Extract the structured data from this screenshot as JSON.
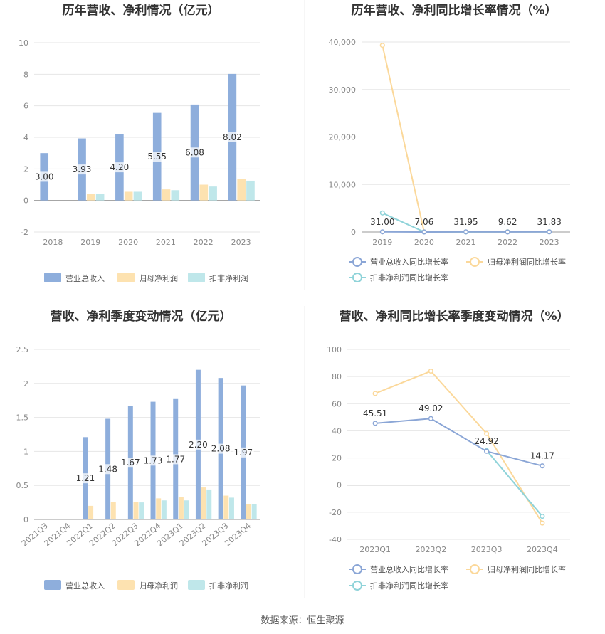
{
  "source": "数据来源：恒生聚源",
  "colors": {
    "revenue": "#8eaedc",
    "netprofit": "#fde2b0",
    "deducted": "#bfe7ea",
    "revLine": "#8ba6d6",
    "npLine": "#fbd89a",
    "dedLine": "#8fd3d9"
  },
  "chart_data": [
    {
      "id": "annual",
      "type": "bar",
      "title": "历年营收、净利情况（亿元）",
      "categories": [
        "2018",
        "2019",
        "2020",
        "2021",
        "2022",
        "2023"
      ],
      "ylim": [
        -2,
        10
      ],
      "yticks": [
        -2,
        0,
        2,
        4,
        6,
        8,
        10
      ],
      "grid": true,
      "legend": "bottom",
      "series": [
        {
          "name": "营业总收入",
          "values": [
            3.0,
            3.93,
            4.2,
            5.55,
            6.08,
            8.02
          ],
          "labels": [
            "3.00",
            "3.93",
            "4.20",
            "5.55",
            "6.08",
            "8.02"
          ]
        },
        {
          "name": "归母净利润",
          "values": [
            null,
            0.4,
            0.55,
            0.7,
            1.0,
            1.38
          ]
        },
        {
          "name": "扣非净利润",
          "values": [
            null,
            0.4,
            0.55,
            0.65,
            0.88,
            1.25
          ]
        }
      ]
    },
    {
      "id": "annualGrowth",
      "type": "line",
      "title": "历年营收、净利同比增长率情况（%）",
      "categories": [
        "2019",
        "2020",
        "2021",
        "2022",
        "2023"
      ],
      "ylim": [
        0,
        40000
      ],
      "yticks": [
        0,
        10000,
        20000,
        30000,
        40000
      ],
      "ytick_labels": [
        "0",
        "10,000",
        "20,000",
        "30,000",
        "40,000"
      ],
      "grid": true,
      "legend": "bottom",
      "series": [
        {
          "name": "营业总收入同比增长率",
          "values": [
            31.0,
            7.06,
            31.95,
            9.62,
            31.83
          ],
          "labels": [
            "31.00",
            "7.06",
            "31.95",
            "9.62",
            "31.83"
          ]
        },
        {
          "name": "归母净利润同比增长率",
          "values": [
            39300,
            30,
            20,
            40,
            30
          ]
        },
        {
          "name": "扣非净利润同比增长率",
          "values": [
            4000,
            20,
            10,
            30,
            40
          ]
        }
      ]
    },
    {
      "id": "quarterly",
      "type": "bar",
      "title": "营收、净利季度变动情况（亿元）",
      "categories": [
        "2021Q3",
        "2021Q4",
        "2022Q1",
        "2022Q2",
        "2022Q3",
        "2022Q4",
        "2023Q1",
        "2023Q2",
        "2023Q3",
        "2023Q4"
      ],
      "ylim": [
        0,
        2.5
      ],
      "yticks": [
        0,
        0.5,
        1,
        1.5,
        2,
        2.5
      ],
      "ytick_labels": [
        "0",
        "0.5",
        "1",
        "1.5",
        "2",
        "2.5"
      ],
      "grid": true,
      "legend": "bottom",
      "series": [
        {
          "name": "营业总收入",
          "values": [
            null,
            null,
            1.21,
            1.48,
            1.67,
            1.73,
            1.77,
            2.2,
            2.08,
            1.97
          ],
          "labels": [
            "",
            "",
            "1.21",
            "1.48",
            "1.67",
            "1.73",
            "1.77",
            "2.20",
            "2.08",
            "1.97"
          ]
        },
        {
          "name": "归母净利润",
          "values": [
            null,
            null,
            0.2,
            0.26,
            0.26,
            0.31,
            0.33,
            0.47,
            0.35,
            0.23
          ]
        },
        {
          "name": "扣非净利润",
          "values": [
            null,
            null,
            null,
            null,
            0.25,
            0.28,
            0.28,
            0.44,
            0.32,
            0.22
          ]
        }
      ]
    },
    {
      "id": "quarterlyGrowth",
      "type": "line",
      "title": "营收、净利同比增长率季度变动情况（%）",
      "categories": [
        "2023Q1",
        "2023Q2",
        "2023Q3",
        "2023Q4"
      ],
      "ylim": [
        -40,
        100
      ],
      "yticks": [
        -40,
        -20,
        0,
        20,
        40,
        60,
        80,
        100
      ],
      "grid": true,
      "legend": "bottom",
      "series": [
        {
          "name": "营业总收入同比增长率",
          "values": [
            45.51,
            49.02,
            24.92,
            14.17
          ],
          "labels": [
            "45.51",
            "49.02",
            "24.92",
            "14.17"
          ]
        },
        {
          "name": "归母净利润同比增长率",
          "values": [
            67.5,
            84.0,
            38.0,
            -28.0
          ]
        },
        {
          "name": "扣非净利润同比增长率",
          "values": [
            null,
            null,
            25.5,
            -23.0
          ]
        }
      ]
    }
  ]
}
